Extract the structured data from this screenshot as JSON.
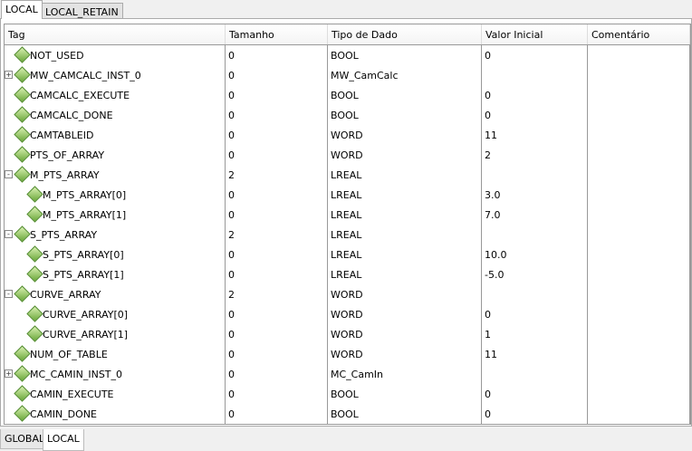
{
  "top_tabs": [
    "LOCAL",
    "LOCAL_RETAIN"
  ],
  "columns": [
    "Tag",
    "Tamanho",
    "Tipo de Dado",
    "Valor Inicial",
    "Comentário"
  ],
  "rows": [
    {
      "tag": "NOT_USED",
      "size": "0",
      "type": "BOOL",
      "init": "0",
      "comment": "",
      "level": 0,
      "expander": ""
    },
    {
      "tag": "MW_CAMCALC_INST_0",
      "size": "0",
      "type": "MW_CamCalc",
      "init": "",
      "comment": "",
      "level": 0,
      "expander": "+"
    },
    {
      "tag": "CAMCALC_EXECUTE",
      "size": "0",
      "type": "BOOL",
      "init": "0",
      "comment": "",
      "level": 0,
      "expander": ""
    },
    {
      "tag": "CAMCALC_DONE",
      "size": "0",
      "type": "BOOL",
      "init": "0",
      "comment": "",
      "level": 0,
      "expander": ""
    },
    {
      "tag": "CAMTABLEID",
      "size": "0",
      "type": "WORD",
      "init": "11",
      "comment": "",
      "level": 0,
      "expander": ""
    },
    {
      "tag": "PTS_OF_ARRAY",
      "size": "0",
      "type": "WORD",
      "init": "2",
      "comment": "",
      "level": 0,
      "expander": ""
    },
    {
      "tag": "M_PTS_ARRAY",
      "size": "2",
      "type": "LREAL",
      "init": "",
      "comment": "",
      "level": 0,
      "expander": "-"
    },
    {
      "tag": "M_PTS_ARRAY[0]",
      "size": "0",
      "type": "LREAL",
      "init": "3.0",
      "comment": "",
      "level": 1,
      "expander": ""
    },
    {
      "tag": "M_PTS_ARRAY[1]",
      "size": "0",
      "type": "LREAL",
      "init": "7.0",
      "comment": "",
      "level": 1,
      "expander": ""
    },
    {
      "tag": "S_PTS_ARRAY",
      "size": "2",
      "type": "LREAL",
      "init": "",
      "comment": "",
      "level": 0,
      "expander": "-"
    },
    {
      "tag": "S_PTS_ARRAY[0]",
      "size": "0",
      "type": "LREAL",
      "init": "10.0",
      "comment": "",
      "level": 1,
      "expander": ""
    },
    {
      "tag": "S_PTS_ARRAY[1]",
      "size": "0",
      "type": "LREAL",
      "init": "-5.0",
      "comment": "",
      "level": 1,
      "expander": ""
    },
    {
      "tag": "CURVE_ARRAY",
      "size": "2",
      "type": "WORD",
      "init": "",
      "comment": "",
      "level": 0,
      "expander": "-"
    },
    {
      "tag": "CURVE_ARRAY[0]",
      "size": "0",
      "type": "WORD",
      "init": "0",
      "comment": "",
      "level": 1,
      "expander": ""
    },
    {
      "tag": "CURVE_ARRAY[1]",
      "size": "0",
      "type": "WORD",
      "init": "1",
      "comment": "",
      "level": 1,
      "expander": ""
    },
    {
      "tag": "NUM_OF_TABLE",
      "size": "0",
      "type": "WORD",
      "init": "11",
      "comment": "",
      "level": 0,
      "expander": ""
    },
    {
      "tag": "MC_CAMIN_INST_0",
      "size": "0",
      "type": "MC_CamIn",
      "init": "",
      "comment": "",
      "level": 0,
      "expander": "+"
    },
    {
      "tag": "CAMIN_EXECUTE",
      "size": "0",
      "type": "BOOL",
      "init": "0",
      "comment": "",
      "level": 0,
      "expander": ""
    },
    {
      "tag": "CAMIN_DONE",
      "size": "0",
      "type": "BOOL",
      "init": "0",
      "comment": "",
      "level": 0,
      "expander": ""
    }
  ],
  "bottom_tabs": [
    "GLOBAL",
    "LOCAL"
  ],
  "icon": "variable-diamond-icon",
  "colors": {
    "icon_green": "#6aa83a"
  }
}
